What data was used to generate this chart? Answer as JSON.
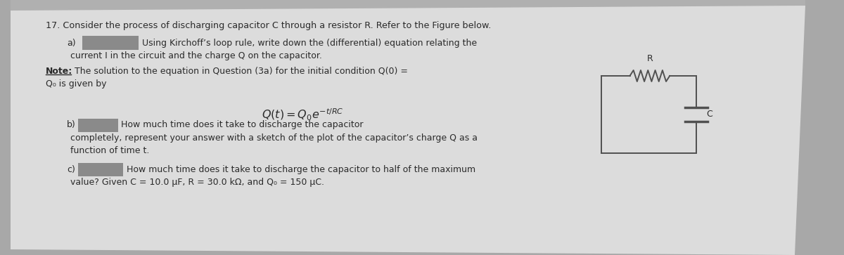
{
  "bg_color": "#a8a8a8",
  "paper_color": "#dcdcdc",
  "text_color": "#2a2a2a",
  "circuit_color": "#505050",
  "blank_color": "#8a8a8a",
  "title_line": "17. Consider the process of discharging capacitor C through a resistor R. Refer to the Figure below.",
  "a_label": "a)",
  "a_text1": "Using Kirchoff’s loop rule, write down the (differential) equation relating the",
  "a_text2": "current I in the circuit and the charge Q on the capacitor.",
  "note_bold": "Note:",
  "note_rest": " The solution to the equation in Question (3a) for the initial condition Q(0) =",
  "note_line2": "Q₀ is given by",
  "formula": "$Q(t) = Q_0e^{-t/RC}$",
  "b_label": "b)",
  "b_text1": "How much time does it take to discharge the capacitor",
  "b_text2": "completely, represent your answer with a sketch of the plot of the capacitor’s charge Q as a",
  "b_text3": "function of time t.",
  "c_label": "c)",
  "c_text1": "How much time does it take to discharge the capacitor to half of the maximum",
  "c_text2": "value? Given C = 10.0 μF, R = 30.0 kΩ, and Q₀ = 150 μC.",
  "fs_title": 9.2,
  "fs_body": 9.0,
  "fs_formula": 11.5
}
